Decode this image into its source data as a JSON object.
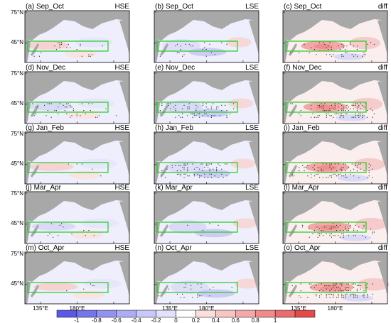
{
  "chart_data": {
    "type": "heatmap",
    "layout": "5x3 grid of map panels",
    "columns": [
      "HSE",
      "LSE",
      "diff"
    ],
    "panels": [
      {
        "letter": "(a)",
        "season": "Sep_Oct",
        "field": "HSE"
      },
      {
        "letter": "(b)",
        "season": "Sep_Oct",
        "field": "LSE"
      },
      {
        "letter": "(c)",
        "season": "Sep_Oct",
        "field": "diff"
      },
      {
        "letter": "(d)",
        "season": "Nov_Dec",
        "field": "HSE"
      },
      {
        "letter": "(e)",
        "season": "Nov_Dec",
        "field": "LSE"
      },
      {
        "letter": "(f)",
        "season": "Nov_Dec",
        "field": "diff"
      },
      {
        "letter": "(g)",
        "season": "Jan_Feb",
        "field": "HSE"
      },
      {
        "letter": "(h)",
        "season": "Jan_Feb",
        "field": "LSE"
      },
      {
        "letter": "(i)",
        "season": "Jan_Feb",
        "field": "diff"
      },
      {
        "letter": "(j)",
        "season": "Mar_Apr",
        "field": "HSE"
      },
      {
        "letter": "(k)",
        "season": "Mar_Apr",
        "field": "LSE"
      },
      {
        "letter": "(l)",
        "season": "Mar_Apr",
        "field": "diff"
      },
      {
        "letter": "(m)",
        "season": "Oct_Apr",
        "field": "HSE"
      },
      {
        "letter": "(n)",
        "season": "Oct_Apr",
        "field": "LSE"
      },
      {
        "letter": "(o)",
        "season": "Oct_Apr",
        "field": "diff"
      }
    ],
    "lat_ticks": [
      "75°N",
      "45°N"
    ],
    "lon_ticks": [
      "135°E",
      "180°E"
    ],
    "colorbar": {
      "labels": [
        "-1",
        "-0.8",
        "-0.6",
        "-0.4",
        "-0.2",
        "0",
        "0.2",
        "0.4",
        "0.6",
        "0.8",
        "1"
      ],
      "colors": [
        "#5a5ae6",
        "#7575ec",
        "#9292f1",
        "#adadf5",
        "#c8c8f9",
        "#e2e2fc",
        "#ffffff",
        "#fbdede",
        "#f8c4c4",
        "#f4a8a8",
        "#f08b8b",
        "#eb6c6c",
        "#e44a4a"
      ]
    },
    "colors": {
      "land": "#a8a8a8",
      "box": "#22cc22",
      "stipple": "#111111"
    }
  }
}
